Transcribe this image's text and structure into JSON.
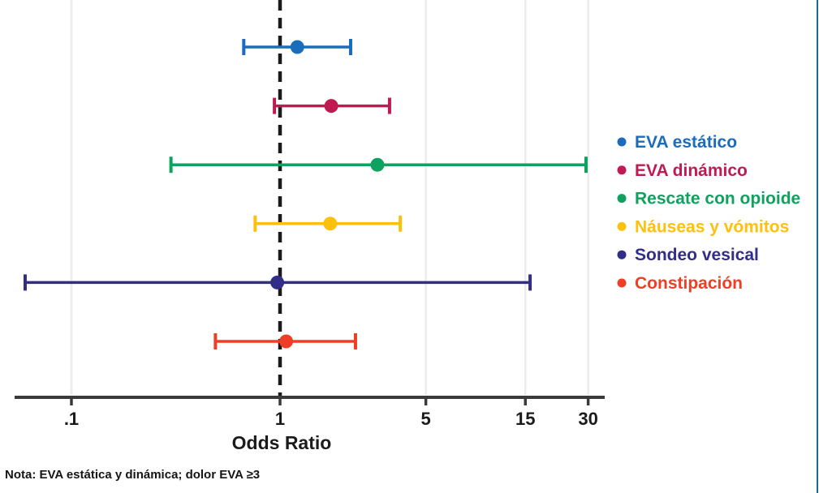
{
  "colors": {
    "axis": "#3a3a3a",
    "tick_label": "#1b1b1b",
    "gridline": "#ececec",
    "reference_line": "#1a1a1a",
    "figure_border": "#17698e"
  },
  "chart_data": {
    "type": "scatter",
    "subtype": "forest-plot",
    "x_scale": "log",
    "xlabel": "Odds Ratio",
    "note": "Nota: EVA estática y dinámica; dolor EVA ≥3",
    "reference_line": 1,
    "x_ticks": [
      {
        "value": 0.1,
        "label": ".1"
      },
      {
        "value": 1,
        "label": "1"
      },
      {
        "value": 5,
        "label": "5"
      },
      {
        "value": 15,
        "label": "15"
      },
      {
        "value": 30,
        "label": "30"
      }
    ],
    "xlim": [
      0.05,
      32
    ],
    "grid": "faint vertical lines at ticks",
    "legend_position": "right",
    "series": [
      {
        "name": "EVA estático",
        "color": "#1b6cba",
        "or": 1.21,
        "ci_low": 0.67,
        "ci_high": 2.18
      },
      {
        "name": "EVA dinámico",
        "color": "#c01a52",
        "or": 1.76,
        "ci_low": 0.94,
        "ci_high": 3.35
      },
      {
        "name": "Rescate con opioide",
        "color": "#0fa25f",
        "or": 2.93,
        "ci_low": 0.3,
        "ci_high": 29.3
      },
      {
        "name": "Náuseas y vómitos",
        "color": "#fdc10d",
        "or": 1.74,
        "ci_low": 0.76,
        "ci_high": 3.77
      },
      {
        "name": "Sondeo vesical",
        "color": "#332d8a",
        "or": 0.97,
        "ci_low": 0.06,
        "ci_high": 15.8
      },
      {
        "name": "Constipación",
        "color": "#ee3f26",
        "or": 1.07,
        "ci_low": 0.49,
        "ci_high": 2.3
      }
    ]
  }
}
